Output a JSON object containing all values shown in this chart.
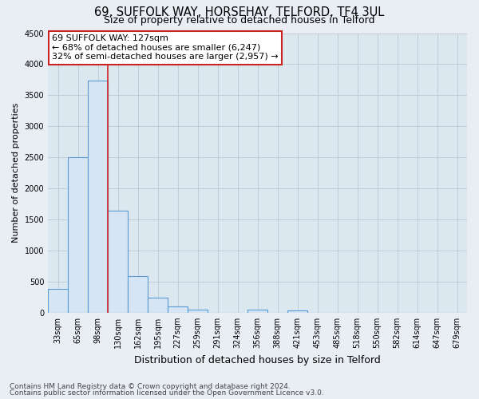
{
  "title": "69, SUFFOLK WAY, HORSEHAY, TELFORD, TF4 3UL",
  "subtitle": "Size of property relative to detached houses in Telford",
  "xlabel": "Distribution of detached houses by size in Telford",
  "ylabel": "Number of detached properties",
  "footnote1": "Contains HM Land Registry data © Crown copyright and database right 2024.",
  "footnote2": "Contains public sector information licensed under the Open Government Licence v3.0.",
  "bar_labels": [
    "33sqm",
    "65sqm",
    "98sqm",
    "130sqm",
    "162sqm",
    "195sqm",
    "227sqm",
    "259sqm",
    "291sqm",
    "324sqm",
    "356sqm",
    "388sqm",
    "421sqm",
    "453sqm",
    "485sqm",
    "518sqm",
    "550sqm",
    "582sqm",
    "614sqm",
    "647sqm",
    "679sqm"
  ],
  "bar_values": [
    380,
    2500,
    3730,
    1640,
    590,
    245,
    100,
    55,
    0,
    0,
    55,
    0,
    30,
    0,
    0,
    0,
    0,
    0,
    0,
    0,
    0
  ],
  "bar_color": "#d6e5f3",
  "bar_edge_color": "#5b9bd5",
  "vline_color": "#cc2222",
  "annotation_title": "69 SUFFOLK WAY: 127sqm",
  "annotation_line1": "← 68% of detached houses are smaller (6,247)",
  "annotation_line2": "32% of semi-detached houses are larger (2,957) →",
  "annotation_box_facecolor": "white",
  "annotation_box_edgecolor": "#cc2222",
  "ylim": [
    0,
    4500
  ],
  "yticks": [
    0,
    500,
    1000,
    1500,
    2000,
    2500,
    3000,
    3500,
    4000,
    4500
  ],
  "bg_color": "#e8eef4",
  "plot_bg_color": "#dce8f0",
  "grid_color": "#c0cdd8",
  "title_fontsize": 10.5,
  "subtitle_fontsize": 9,
  "ylabel_fontsize": 8,
  "xlabel_fontsize": 9,
  "tick_fontsize": 7,
  "footnote_fontsize": 6.5,
  "annotation_fontsize": 8
}
